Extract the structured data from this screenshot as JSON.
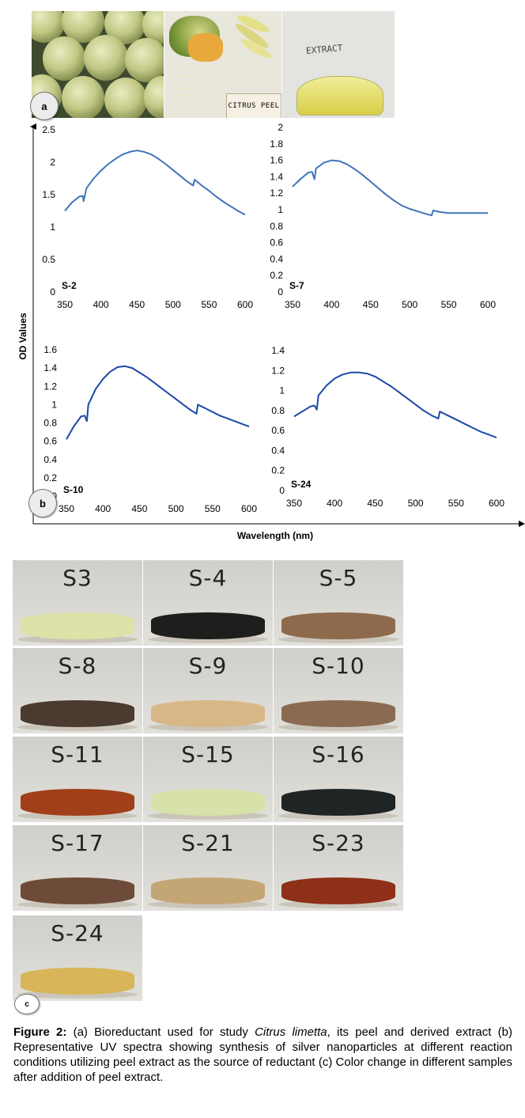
{
  "panel_a": {
    "label": "a",
    "photo_extract_text": "EXTRACT",
    "photo_peel_tag": "CITRUS PEEL"
  },
  "panel_b": {
    "label": "b",
    "ylabel": "OD Values",
    "xlabel": "Wavelength (nm)"
  },
  "chart_data": [
    {
      "type": "line",
      "label": "S-2",
      "xticks": [
        350,
        400,
        450,
        500,
        550,
        600
      ],
      "yticks": [
        "0",
        "0.5",
        "1",
        "1.5",
        "2",
        "2.5"
      ],
      "xlim": [
        350,
        600
      ],
      "ylim": [
        0,
        2.5
      ],
      "x": [
        350,
        360,
        370,
        375,
        376,
        380,
        390,
        400,
        410,
        420,
        430,
        440,
        450,
        460,
        470,
        480,
        490,
        500,
        510,
        520,
        528,
        530,
        540,
        550,
        560,
        570,
        580,
        590,
        600
      ],
      "y": [
        1.25,
        1.38,
        1.47,
        1.48,
        1.4,
        1.6,
        1.75,
        1.87,
        1.97,
        2.05,
        2.12,
        2.16,
        2.18,
        2.16,
        2.12,
        2.05,
        1.97,
        1.88,
        1.79,
        1.7,
        1.64,
        1.73,
        1.64,
        1.56,
        1.47,
        1.39,
        1.32,
        1.25,
        1.19
      ],
      "color": "#3f75b8"
    },
    {
      "type": "line",
      "label": "S-7",
      "xticks": [
        350,
        400,
        450,
        500,
        550,
        600
      ],
      "yticks": [
        "0",
        "0.2",
        "0.4",
        "0.6",
        "0.8",
        "1",
        "1.2",
        "1.4",
        "1.6",
        "1.8",
        "2"
      ],
      "xlim": [
        350,
        600
      ],
      "ylim": [
        0,
        2
      ],
      "x": [
        350,
        360,
        370,
        375,
        378,
        380,
        390,
        400,
        410,
        420,
        430,
        440,
        450,
        460,
        470,
        480,
        490,
        500,
        510,
        520,
        528,
        530,
        540,
        550,
        560,
        570,
        580,
        590,
        600
      ],
      "y": [
        1.28,
        1.37,
        1.45,
        1.46,
        1.37,
        1.5,
        1.57,
        1.6,
        1.59,
        1.55,
        1.49,
        1.42,
        1.34,
        1.26,
        1.18,
        1.11,
        1.05,
        1.01,
        0.98,
        0.95,
        0.93,
        0.99,
        0.97,
        0.96,
        0.96,
        0.96,
        0.96,
        0.96,
        0.96
      ],
      "color": "#3f75b8"
    },
    {
      "type": "line",
      "label": "S-10",
      "xticks": [
        350,
        400,
        450,
        500,
        550,
        600
      ],
      "yticks": [
        "0",
        "0.2",
        "0.4",
        "0.6",
        "0.8",
        "1",
        "1.2",
        "1.4",
        "1.6"
      ],
      "xlim": [
        350,
        600
      ],
      "ylim": [
        0,
        1.6
      ],
      "x": [
        350,
        360,
        370,
        375,
        378,
        380,
        390,
        400,
        410,
        420,
        430,
        440,
        450,
        460,
        470,
        480,
        490,
        500,
        510,
        520,
        528,
        530,
        540,
        550,
        560,
        570,
        580,
        590,
        600
      ],
      "y": [
        0.62,
        0.76,
        0.87,
        0.88,
        0.82,
        1.0,
        1.17,
        1.28,
        1.36,
        1.41,
        1.42,
        1.4,
        1.35,
        1.3,
        1.24,
        1.18,
        1.12,
        1.06,
        1.0,
        0.94,
        0.9,
        1.0,
        0.96,
        0.92,
        0.88,
        0.85,
        0.82,
        0.79,
        0.76
      ],
      "color": "#1a48a8"
    },
    {
      "type": "line",
      "label": "S-24",
      "xticks": [
        350,
        400,
        450,
        500,
        550,
        600
      ],
      "yticks": [
        "0",
        "0.2",
        "0.4",
        "0.6",
        "0.8",
        "1",
        "1.2",
        "1.4"
      ],
      "xlim": [
        350,
        600
      ],
      "ylim": [
        0,
        1.4
      ],
      "x": [
        350,
        360,
        370,
        375,
        378,
        380,
        390,
        400,
        410,
        420,
        430,
        440,
        450,
        460,
        470,
        480,
        490,
        500,
        510,
        520,
        528,
        530,
        540,
        550,
        560,
        570,
        580,
        590,
        600
      ],
      "y": [
        0.74,
        0.79,
        0.84,
        0.85,
        0.81,
        0.95,
        1.05,
        1.12,
        1.16,
        1.18,
        1.18,
        1.17,
        1.14,
        1.09,
        1.04,
        0.98,
        0.92,
        0.86,
        0.8,
        0.75,
        0.72,
        0.79,
        0.75,
        0.71,
        0.67,
        0.63,
        0.59,
        0.56,
        0.53
      ],
      "color": "#1a48a8"
    }
  ],
  "panel_c": {
    "label": "c",
    "samples": [
      {
        "label": "S3",
        "liquid": "#dfe2a8"
      },
      {
        "label": "S-4",
        "liquid": "#1e1e1c"
      },
      {
        "label": "S-5",
        "liquid": "#8e6a4c"
      },
      {
        "label": "S-8",
        "liquid": "#4b3a30"
      },
      {
        "label": "S-9",
        "liquid": "#d8b787"
      },
      {
        "label": "S-10",
        "liquid": "#8a6a52"
      },
      {
        "label": "S-11",
        "liquid": "#a13f1a"
      },
      {
        "label": "S-15",
        "liquid": "#d6e2a9"
      },
      {
        "label": "S-16",
        "liquid": "#1f2524"
      },
      {
        "label": "S-17",
        "liquid": "#6e4b38"
      },
      {
        "label": "S-21",
        "liquid": "#c4a574"
      },
      {
        "label": "S-23",
        "liquid": "#8e2f18"
      },
      {
        "label": "S-24",
        "liquid": "#d7b558"
      }
    ]
  },
  "caption": {
    "lead": "Figure 2:",
    "part1": " (a) Bioreductant used for study ",
    "species": "Citrus limetta",
    "part2": ", its peel and derived extract (b) Representative UV spectra showing synthesis of silver nanoparticles at different reaction conditions utilizing peel extract as the source of reductant (c) Color change in different samples after addition of peel extract."
  }
}
